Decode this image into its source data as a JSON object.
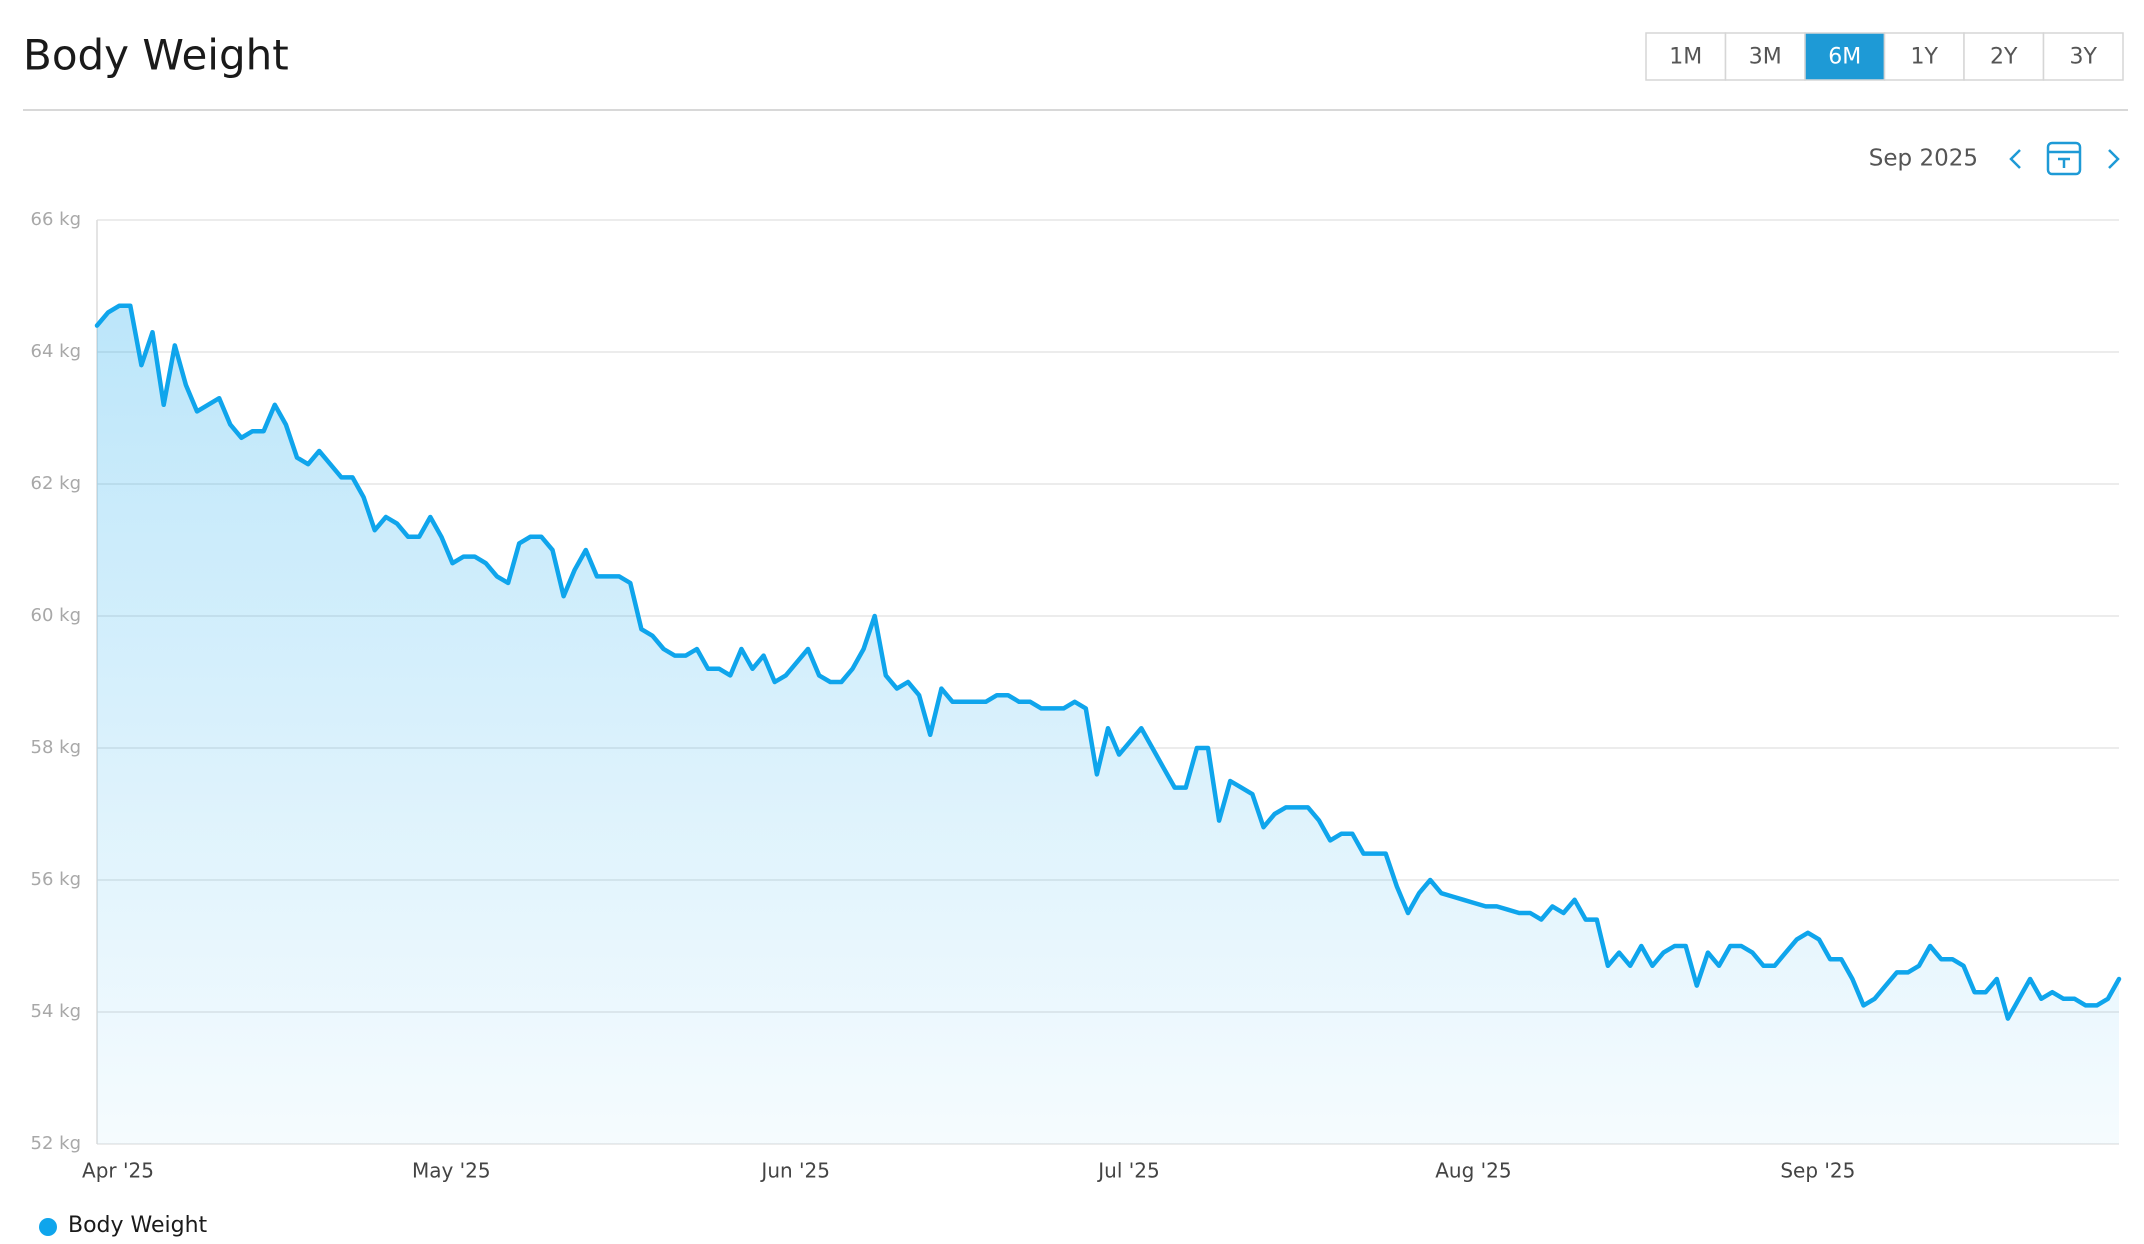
{
  "chart_data": {
    "type": "area-line",
    "title": "Body Weight",
    "categories": [
      "Apr '25",
      null,
      null,
      null,
      null,
      null,
      null,
      null,
      null,
      null,
      null,
      null,
      null,
      null,
      null,
      null,
      null,
      null,
      null,
      null,
      null,
      null,
      null,
      null,
      null,
      null,
      null,
      null,
      null,
      null,
      "May '25",
      null,
      null,
      null,
      null,
      null,
      null,
      null,
      null,
      null,
      null,
      null,
      null,
      null,
      null,
      null,
      null,
      null,
      null,
      null,
      null,
      null,
      null,
      null,
      null,
      null,
      null,
      null,
      null,
      null,
      null,
      "Jun '25",
      null,
      null,
      null,
      null,
      null,
      null,
      null,
      null,
      null,
      null,
      null,
      null,
      null,
      null,
      null,
      null,
      null,
      null,
      null,
      null,
      null,
      null,
      null,
      null,
      null,
      null,
      null,
      null,
      null,
      "Jul '25",
      null,
      null,
      null,
      null,
      null,
      null,
      null,
      null,
      null,
      null,
      null,
      null,
      null,
      null,
      null,
      null,
      null,
      null,
      null,
      null,
      null,
      null,
      null,
      null,
      null,
      null,
      null,
      null,
      null,
      null,
      "Aug '25",
      null,
      null,
      null,
      null,
      null,
      null,
      null,
      null,
      null,
      null,
      null,
      null,
      null,
      null,
      null,
      null,
      null,
      null,
      null,
      null,
      null,
      null,
      null,
      null,
      null,
      null,
      null,
      null,
      null,
      null,
      "Sep '25",
      null,
      null,
      null,
      null,
      null,
      null,
      null,
      null,
      null,
      null,
      null,
      null,
      null,
      null,
      null,
      null,
      null,
      null,
      null,
      null,
      null,
      null,
      null,
      null,
      null,
      null,
      null,
      null,
      null
    ],
    "series": [
      {
        "name": "Body Weight",
        "color": "#0fa5ec",
        "values": [
          64.4,
          64.6,
          64.7,
          64.7,
          63.8,
          64.3,
          63.2,
          64.1,
          63.5,
          63.1,
          63.2,
          63.3,
          62.9,
          62.7,
          62.8,
          62.8,
          63.2,
          62.9,
          62.4,
          62.3,
          62.5,
          62.3,
          62.1,
          62.1,
          61.8,
          61.3,
          61.5,
          61.4,
          61.2,
          61.2,
          61.5,
          61.2,
          60.8,
          60.9,
          60.9,
          60.8,
          60.6,
          60.5,
          61.1,
          61.2,
          61.2,
          61.0,
          60.3,
          60.7,
          61.0,
          60.6,
          60.6,
          60.6,
          60.5,
          59.8,
          59.7,
          59.5,
          59.4,
          59.4,
          59.5,
          59.2,
          59.2,
          59.1,
          59.5,
          59.2,
          59.4,
          59.0,
          59.1,
          59.3,
          59.5,
          59.1,
          59.0,
          59.0,
          59.2,
          59.5,
          60.0,
          59.1,
          58.9,
          59.0,
          58.8,
          58.2,
          58.9,
          58.7,
          58.7,
          58.7,
          58.7,
          58.8,
          58.8,
          58.7,
          58.7,
          58.6,
          58.6,
          58.6,
          58.7,
          58.6,
          57.6,
          58.3,
          57.9,
          58.1,
          58.3,
          58.0,
          57.7,
          57.4,
          57.4,
          58.0,
          58.0,
          56.9,
          57.5,
          57.4,
          57.3,
          56.8,
          57.0,
          57.1,
          57.1,
          57.1,
          56.9,
          56.6,
          56.7,
          56.7,
          56.4,
          56.4,
          56.4,
          55.9,
          55.5,
          55.8,
          56.0,
          55.8,
          55.75,
          55.7,
          55.65,
          55.6,
          55.6,
          55.55,
          55.5,
          55.5,
          55.4,
          55.6,
          55.5,
          55.7,
          55.4,
          55.4,
          54.7,
          54.9,
          54.7,
          55.0,
          54.7,
          54.9,
          55.0,
          55.0,
          54.4,
          54.9,
          54.7,
          55.0,
          55.0,
          54.9,
          54.7,
          54.7,
          54.9,
          55.1,
          55.2,
          55.1,
          54.8,
          54.8,
          54.5,
          54.1,
          54.2,
          54.4,
          54.6,
          54.6,
          54.7,
          55.0,
          54.8,
          54.8,
          54.7,
          54.3,
          54.3,
          54.5,
          53.9,
          54.2,
          54.5,
          54.2,
          54.3,
          54.2,
          54.2,
          54.1,
          54.1,
          54.2,
          54.5
        ]
      }
    ],
    "ylim": [
      52,
      66
    ],
    "yticks": [
      {
        "value": 52,
        "label": "52 kg"
      },
      {
        "value": 54,
        "label": "54 kg"
      },
      {
        "value": 56,
        "label": "56 kg"
      },
      {
        "value": 58,
        "label": "58 kg"
      },
      {
        "value": 60,
        "label": "60 kg"
      },
      {
        "value": 62,
        "label": "62 kg"
      },
      {
        "value": 64,
        "label": "64 kg"
      },
      {
        "value": 66,
        "label": "66 kg"
      }
    ],
    "grid": true
  },
  "controls": {
    "ranges": [
      "1M",
      "3M",
      "6M",
      "1Y",
      "2Y",
      "3Y"
    ],
    "active": "6M",
    "period": "Sep 2025"
  }
}
